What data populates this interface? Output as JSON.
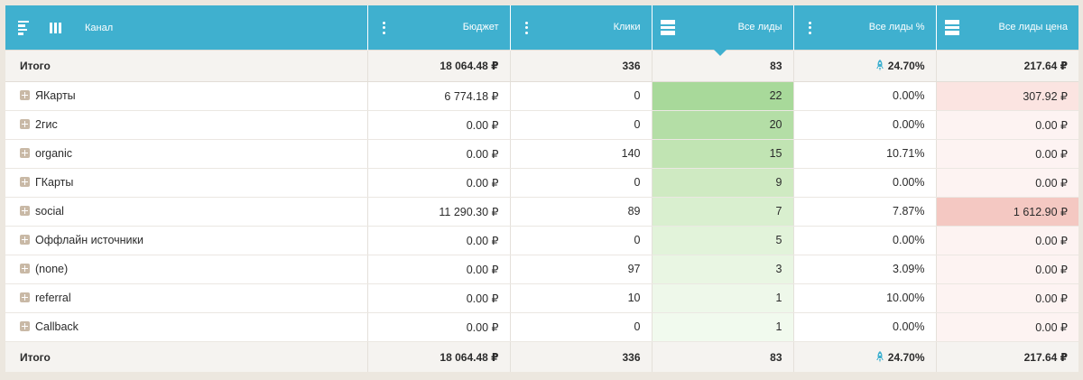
{
  "colors": {
    "header_bg": "#3fb0cf",
    "leads_scale": [
      "#a8d99a",
      "#b4dea6",
      "#c1e4b3",
      "#cfeac2",
      "#d9efcf",
      "#e2f3da",
      "#e9f6e3",
      "#eef8ea",
      "#f1faee"
    ],
    "price_scale": [
      "#fbe4e1",
      "#fdf3f2",
      "#f4c8c2"
    ]
  },
  "header": {
    "channel": "Канал",
    "budget": "Бюджет",
    "clicks": "Клики",
    "leads": "Все лиды",
    "leads_pct": "Все лиды %",
    "leads_price": "Все лиды цена",
    "icons": [
      "align-left-icon",
      "columns-icon",
      "more-vert-icon",
      "more-vert-icon",
      "stack-icon",
      "more-vert-icon",
      "stack-icon"
    ]
  },
  "totals_top": {
    "label": "Итого",
    "budget": "18 064.48 ₽",
    "clicks": "336",
    "leads": "83",
    "leads_pct": "24.70%",
    "leads_price": "217.64 ₽"
  },
  "rows": [
    {
      "name": "ЯКарты",
      "budget": "6 774.18 ₽",
      "clicks": "0",
      "leads": "22",
      "leads_pct": "0.00%",
      "leads_price": "307.92 ₽"
    },
    {
      "name": "2гис",
      "budget": "0.00 ₽",
      "clicks": "0",
      "leads": "20",
      "leads_pct": "0.00%",
      "leads_price": "0.00 ₽"
    },
    {
      "name": "organic",
      "budget": "0.00 ₽",
      "clicks": "140",
      "leads": "15",
      "leads_pct": "10.71%",
      "leads_price": "0.00 ₽"
    },
    {
      "name": "ГКарты",
      "budget": "0.00 ₽",
      "clicks": "0",
      "leads": "9",
      "leads_pct": "0.00%",
      "leads_price": "0.00 ₽"
    },
    {
      "name": "social",
      "budget": "11 290.30 ₽",
      "clicks": "89",
      "leads": "7",
      "leads_pct": "7.87%",
      "leads_price": "1 612.90 ₽"
    },
    {
      "name": "Оффлайн источники",
      "budget": "0.00 ₽",
      "clicks": "0",
      "leads": "5",
      "leads_pct": "0.00%",
      "leads_price": "0.00 ₽"
    },
    {
      "name": "(none)",
      "budget": "0.00 ₽",
      "clicks": "97",
      "leads": "3",
      "leads_pct": "3.09%",
      "leads_price": "0.00 ₽"
    },
    {
      "name": "referral",
      "budget": "0.00 ₽",
      "clicks": "10",
      "leads": "1",
      "leads_pct": "10.00%",
      "leads_price": "0.00 ₽"
    },
    {
      "name": "Callback",
      "budget": "0.00 ₽",
      "clicks": "0",
      "leads": "1",
      "leads_pct": "0.00%",
      "leads_price": "0.00 ₽"
    }
  ],
  "totals_bottom": {
    "label": "Итого",
    "budget": "18 064.48 ₽",
    "clicks": "336",
    "leads": "83",
    "leads_pct": "24.70%",
    "leads_price": "217.64 ₽"
  }
}
